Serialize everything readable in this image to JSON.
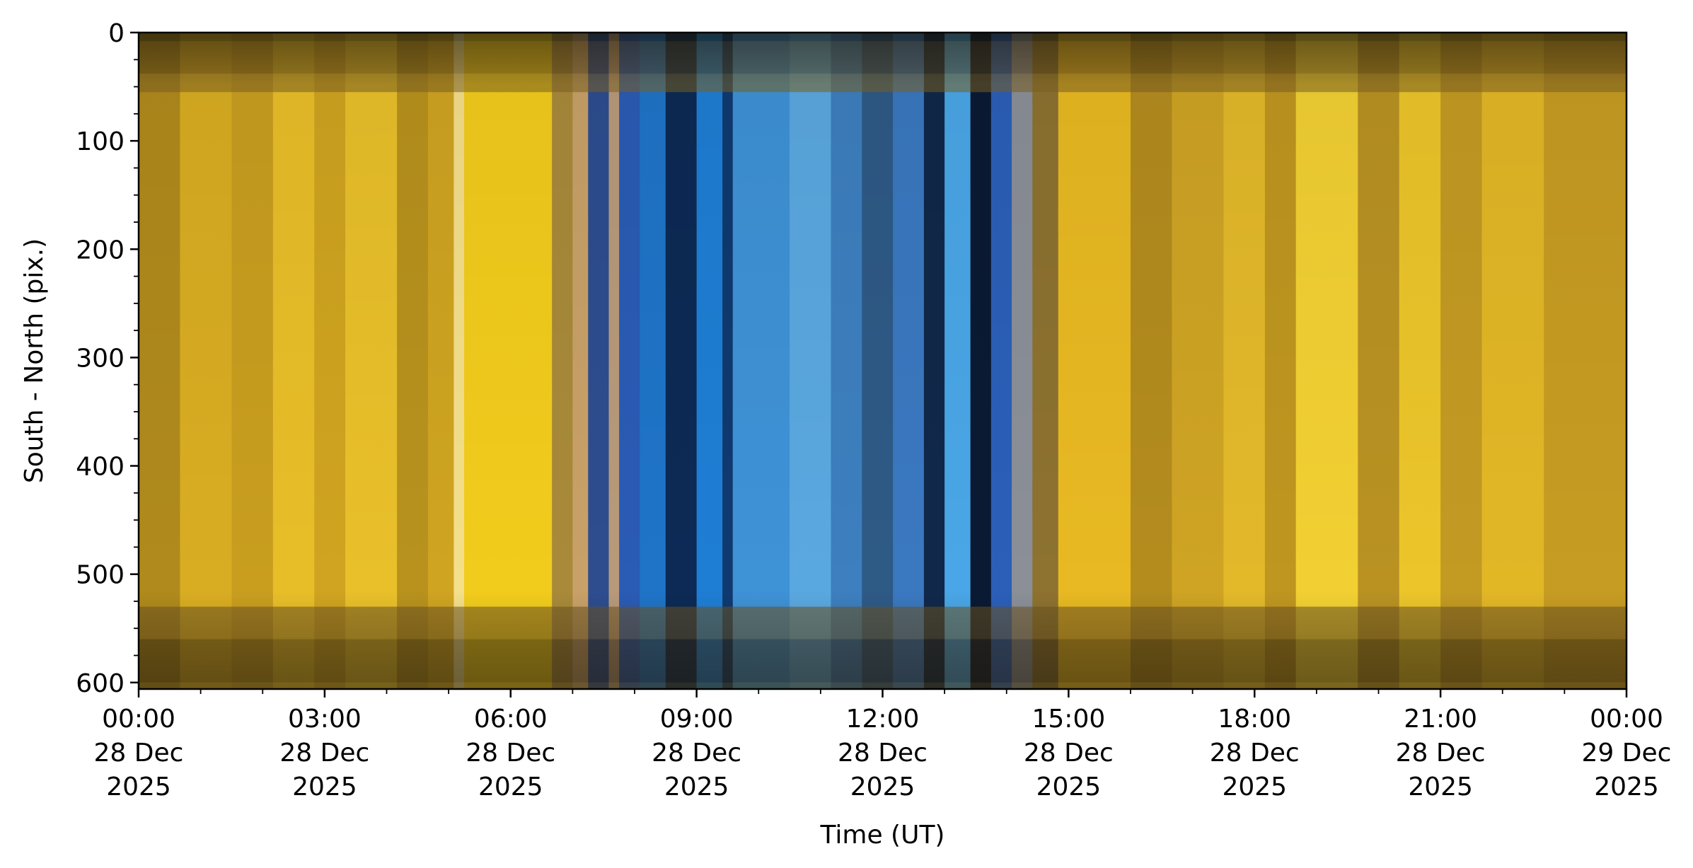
{
  "chart_data": {
    "type": "heatmap",
    "title": "",
    "xlabel": "Time (UT)",
    "ylabel": "South - North (pix.)",
    "xlim": [
      "2025-12-28 00:00",
      "2025-12-29 00:00"
    ],
    "ylim": [
      606,
      0
    ],
    "y_inverted": true,
    "grid": false,
    "legend": "none",
    "x_ticks": [
      {
        "time": "2025-12-28 00:00",
        "lines": [
          "00:00",
          "28 Dec",
          "2025"
        ]
      },
      {
        "time": "2025-12-28 03:00",
        "lines": [
          "03:00",
          "28 Dec",
          "2025"
        ]
      },
      {
        "time": "2025-12-28 06:00",
        "lines": [
          "06:00",
          "28 Dec",
          "2025"
        ]
      },
      {
        "time": "2025-12-28 09:00",
        "lines": [
          "09:00",
          "28 Dec",
          "2025"
        ]
      },
      {
        "time": "2025-12-28 12:00",
        "lines": [
          "12:00",
          "28 Dec",
          "2025"
        ]
      },
      {
        "time": "2025-12-28 15:00",
        "lines": [
          "15:00",
          "28 Dec",
          "2025"
        ]
      },
      {
        "time": "2025-12-28 18:00",
        "lines": [
          "18:00",
          "28 Dec",
          "2025"
        ]
      },
      {
        "time": "2025-12-28 21:00",
        "lines": [
          "21:00",
          "28 Dec",
          "2025"
        ]
      },
      {
        "time": "2025-12-29 00:00",
        "lines": [
          "00:00",
          "29 Dec",
          "2025"
        ]
      }
    ],
    "y_ticks": [
      0,
      100,
      200,
      300,
      400,
      500,
      600
    ],
    "colors": {
      "day": "#e8b820",
      "night": "#1f6fd0",
      "dark": "#0a1830"
    },
    "bands": [
      {
        "start": "2025-12-28 00:00",
        "end": "2025-12-28 00:40",
        "color": "#b08a1c"
      },
      {
        "start": "2025-12-28 00:40",
        "end": "2025-12-28 01:30",
        "color": "#d9ad22"
      },
      {
        "start": "2025-12-28 01:30",
        "end": "2025-12-28 02:10",
        "color": "#c99e1f"
      },
      {
        "start": "2025-12-28 02:10",
        "end": "2025-12-28 02:50",
        "color": "#e8be28"
      },
      {
        "start": "2025-12-28 02:50",
        "end": "2025-12-28 03:20",
        "color": "#d0a420"
      },
      {
        "start": "2025-12-28 03:20",
        "end": "2025-12-28 04:10",
        "color": "#e9c02a"
      },
      {
        "start": "2025-12-28 04:10",
        "end": "2025-12-28 04:40",
        "color": "#b8921d"
      },
      {
        "start": "2025-12-28 04:40",
        "end": "2025-12-28 05:05",
        "color": "#cfa421"
      },
      {
        "start": "2025-12-28 05:05",
        "end": "2025-12-28 05:15",
        "color": "#f4df8a"
      },
      {
        "start": "2025-12-28 05:15",
        "end": "2025-12-28 06:40",
        "color": "#f2cc1c"
      },
      {
        "start": "2025-12-28 06:40",
        "end": "2025-12-28 07:00",
        "color": "#a98a3a"
      },
      {
        "start": "2025-12-28 07:00",
        "end": "2025-12-28 07:15",
        "color": "#c8a168"
      },
      {
        "start": "2025-12-28 07:15",
        "end": "2025-12-28 07:35",
        "color": "#2d4d8f"
      },
      {
        "start": "2025-12-28 07:35",
        "end": "2025-12-28 07:45",
        "color": "#b89a7a"
      },
      {
        "start": "2025-12-28 07:45",
        "end": "2025-12-28 08:05",
        "color": "#2a5bb5"
      },
      {
        "start": "2025-12-28 08:05",
        "end": "2025-12-28 08:30",
        "color": "#1f74c8"
      },
      {
        "start": "2025-12-28 08:30",
        "end": "2025-12-28 09:00",
        "color": "#0c2a55"
      },
      {
        "start": "2025-12-28 09:00",
        "end": "2025-12-28 09:25",
        "color": "#1e7ed4"
      },
      {
        "start": "2025-12-28 09:25",
        "end": "2025-12-28 09:35",
        "color": "#0f3a70"
      },
      {
        "start": "2025-12-28 09:35",
        "end": "2025-12-28 10:30",
        "color": "#3e92d6"
      },
      {
        "start": "2025-12-28 10:30",
        "end": "2025-12-28 11:10",
        "color": "#5aa8e0"
      },
      {
        "start": "2025-12-28 11:10",
        "end": "2025-12-28 11:40",
        "color": "#3d7fbf"
      },
      {
        "start": "2025-12-28 11:40",
        "end": "2025-12-28 12:10",
        "color": "#2e5a86"
      },
      {
        "start": "2025-12-28 12:10",
        "end": "2025-12-28 12:40",
        "color": "#3a78c0"
      },
      {
        "start": "2025-12-28 12:40",
        "end": "2025-12-28 13:00",
        "color": "#10284a"
      },
      {
        "start": "2025-12-28 13:00",
        "end": "2025-12-28 13:25",
        "color": "#4aa6e6"
      },
      {
        "start": "2025-12-28 13:25",
        "end": "2025-12-28 13:45",
        "color": "#0a1a33"
      },
      {
        "start": "2025-12-28 13:45",
        "end": "2025-12-28 14:05",
        "color": "#2b5fb8"
      },
      {
        "start": "2025-12-28 14:05",
        "end": "2025-12-28 14:25",
        "color": "#8a8f98"
      },
      {
        "start": "2025-12-28 14:25",
        "end": "2025-12-28 14:50",
        "color": "#8d7230"
      },
      {
        "start": "2025-12-28 14:50",
        "end": "2025-12-28 16:00",
        "color": "#e8b922"
      },
      {
        "start": "2025-12-28 16:00",
        "end": "2025-12-28 16:40",
        "color": "#b48c1e"
      },
      {
        "start": "2025-12-28 16:40",
        "end": "2025-12-28 17:30",
        "color": "#cfa424"
      },
      {
        "start": "2025-12-28 17:30",
        "end": "2025-12-28 18:10",
        "color": "#e3b92a"
      },
      {
        "start": "2025-12-28 18:10",
        "end": "2025-12-28 18:40",
        "color": "#bf961f"
      },
      {
        "start": "2025-12-28 18:40",
        "end": "2025-12-28 19:40",
        "color": "#f2d033"
      },
      {
        "start": "2025-12-28 19:40",
        "end": "2025-12-28 20:20",
        "color": "#b99222"
      },
      {
        "start": "2025-12-28 20:20",
        "end": "2025-12-28 21:00",
        "color": "#ecc52a"
      },
      {
        "start": "2025-12-28 21:00",
        "end": "2025-12-28 21:40",
        "color": "#c39a22"
      },
      {
        "start": "2025-12-28 21:40",
        "end": "2025-12-28 22:40",
        "color": "#e2b726"
      },
      {
        "start": "2025-12-28 22:40",
        "end": "2025-12-29 00:00",
        "color": "#c79c22"
      }
    ],
    "stripes": [
      {
        "y0": 0,
        "y1": 8,
        "color": "#2a2410"
      },
      {
        "y0": 8,
        "y1": 38,
        "color": "#5a4418"
      },
      {
        "y0": 38,
        "y1": 55,
        "color": "#7d6322"
      },
      {
        "y0": 530,
        "y1": 560,
        "color": "#6e5420"
      },
      {
        "y0": 560,
        "y1": 600,
        "color": "#3a2c12"
      },
      {
        "y0": 600,
        "y1": 606,
        "color": "#5d4a1c"
      }
    ]
  }
}
